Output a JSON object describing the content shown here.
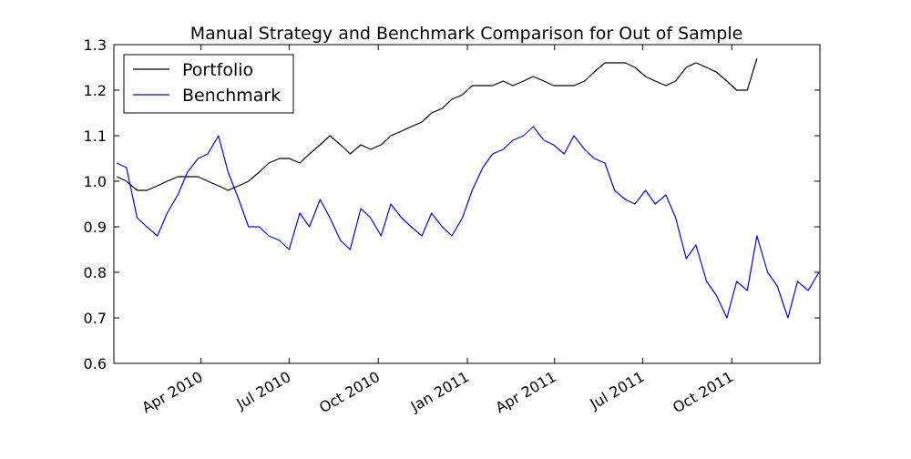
{
  "chart_data": {
    "type": "line",
    "title": "Manual Strategy and Benchmark Comparison for Out of Sample",
    "xlabel": "",
    "ylabel": "",
    "x_range": [
      "2010-01-01",
      "2011-12-31"
    ],
    "ylim": [
      0.6,
      1.3
    ],
    "y_ticks": [
      0.6,
      0.7,
      0.8,
      0.9,
      1.0,
      1.1,
      1.2,
      1.3
    ],
    "y_tick_labels": [
      "0.6",
      "0.7",
      "0.8",
      "0.9",
      "1.0",
      "1.1",
      "1.2",
      "1.3"
    ],
    "x_ticks": [
      {
        "date": "2010-04-01",
        "label": "Apr 2010"
      },
      {
        "date": "2010-07-01",
        "label": "Jul 2010"
      },
      {
        "date": "2010-10-01",
        "label": "Oct 2010"
      },
      {
        "date": "2011-01-01",
        "label": "Jan 2011"
      },
      {
        "date": "2011-04-01",
        "label": "Apr 2011"
      },
      {
        "date": "2011-07-01",
        "label": "Jul 2011"
      },
      {
        "date": "2011-10-01",
        "label": "Oct 2011"
      }
    ],
    "grid": false,
    "legend_position": "top-left",
    "series": [
      {
        "name": "Portfolio",
        "color": "#000000",
        "x": [
          "2010-01-04",
          "2010-01-14",
          "2010-01-25",
          "2010-02-04",
          "2010-02-15",
          "2010-02-25",
          "2010-03-08",
          "2010-03-18",
          "2010-03-29",
          "2010-04-08",
          "2010-04-19",
          "2010-04-29",
          "2010-05-10",
          "2010-05-20",
          "2010-05-31",
          "2010-06-10",
          "2010-06-21",
          "2010-07-01",
          "2010-07-12",
          "2010-07-22",
          "2010-08-02",
          "2010-08-12",
          "2010-08-23",
          "2010-09-02",
          "2010-09-13",
          "2010-09-23",
          "2010-10-04",
          "2010-10-14",
          "2010-10-25",
          "2010-11-04",
          "2010-11-15",
          "2010-11-25",
          "2010-12-06",
          "2010-12-16",
          "2010-12-27",
          "2011-01-06",
          "2011-01-17",
          "2011-01-27",
          "2011-02-07",
          "2011-02-17",
          "2011-02-28",
          "2011-03-10",
          "2011-03-21",
          "2011-03-31",
          "2011-04-11",
          "2011-04-21",
          "2011-05-02",
          "2011-05-12",
          "2011-05-23",
          "2011-06-02",
          "2011-06-13",
          "2011-06-23",
          "2011-07-04",
          "2011-07-14",
          "2011-07-25",
          "2011-08-04",
          "2011-08-15",
          "2011-08-25",
          "2011-09-05",
          "2011-09-15",
          "2011-09-26",
          "2011-10-06",
          "2011-10-17",
          "2011-10-27"
        ],
        "values": [
          1.01,
          1.0,
          0.98,
          0.98,
          0.99,
          1.0,
          1.01,
          1.01,
          1.01,
          1.0,
          0.99,
          0.98,
          0.99,
          1.0,
          1.02,
          1.04,
          1.05,
          1.05,
          1.04,
          1.06,
          1.08,
          1.1,
          1.08,
          1.06,
          1.08,
          1.07,
          1.08,
          1.1,
          1.11,
          1.12,
          1.13,
          1.15,
          1.16,
          1.18,
          1.19,
          1.21,
          1.21,
          1.21,
          1.22,
          1.21,
          1.22,
          1.23,
          1.22,
          1.21,
          1.21,
          1.21,
          1.22,
          1.24,
          1.26,
          1.26,
          1.26,
          1.25,
          1.23,
          1.22,
          1.21,
          1.22,
          1.25,
          1.26,
          1.25,
          1.24,
          1.22,
          1.2,
          1.2,
          1.27
        ]
      },
      {
        "name": "Benchmark",
        "color": "#0000ff",
        "x": [
          "2010-01-04",
          "2010-01-14",
          "2010-01-25",
          "2010-02-04",
          "2010-02-15",
          "2010-02-25",
          "2010-03-08",
          "2010-03-18",
          "2010-03-29",
          "2010-04-08",
          "2010-04-19",
          "2010-04-29",
          "2010-05-10",
          "2010-05-20",
          "2010-05-31",
          "2010-06-10",
          "2010-06-21",
          "2010-07-01",
          "2010-07-12",
          "2010-07-22",
          "2010-08-02",
          "2010-08-12",
          "2010-08-23",
          "2010-09-02",
          "2010-09-13",
          "2010-09-23",
          "2010-10-04",
          "2010-10-14",
          "2010-10-25",
          "2010-11-04",
          "2010-11-15",
          "2010-11-25",
          "2010-12-06",
          "2010-12-16",
          "2010-12-27",
          "2011-01-06",
          "2011-01-17",
          "2011-01-27",
          "2011-02-07",
          "2011-02-17",
          "2011-02-28",
          "2011-03-10",
          "2011-03-21",
          "2011-03-31",
          "2011-04-11",
          "2011-04-21",
          "2011-05-02",
          "2011-05-12",
          "2011-05-23",
          "2011-06-02",
          "2011-06-13",
          "2011-06-23",
          "2011-07-04",
          "2011-07-14",
          "2011-07-25",
          "2011-08-04",
          "2011-08-15",
          "2011-08-25",
          "2011-09-05",
          "2011-09-15",
          "2011-09-26",
          "2011-10-06",
          "2011-10-17",
          "2011-10-27",
          "2011-11-07",
          "2011-11-17",
          "2011-11-28",
          "2011-12-08",
          "2011-12-19",
          "2011-12-30"
        ],
        "values": [
          1.04,
          1.03,
          0.92,
          0.9,
          0.88,
          0.93,
          0.97,
          1.02,
          1.05,
          1.06,
          1.1,
          1.02,
          0.96,
          0.9,
          0.9,
          0.88,
          0.87,
          0.85,
          0.93,
          0.9,
          0.96,
          0.92,
          0.87,
          0.85,
          0.94,
          0.92,
          0.88,
          0.95,
          0.92,
          0.9,
          0.88,
          0.93,
          0.9,
          0.88,
          0.92,
          0.98,
          1.03,
          1.06,
          1.07,
          1.09,
          1.1,
          1.12,
          1.09,
          1.08,
          1.06,
          1.1,
          1.07,
          1.05,
          1.04,
          0.98,
          0.96,
          0.95,
          0.98,
          0.95,
          0.97,
          0.92,
          0.83,
          0.86,
          0.78,
          0.75,
          0.7,
          0.78,
          0.76,
          0.88,
          0.8,
          0.77,
          0.7,
          0.78,
          0.76,
          0.8
        ]
      }
    ]
  }
}
